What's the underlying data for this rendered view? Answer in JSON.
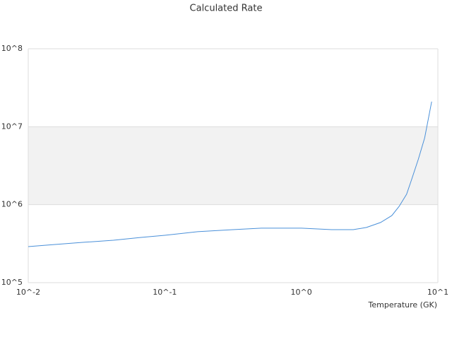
{
  "chart_data": {
    "type": "line",
    "title": "Calculated Rate",
    "x_label": "Temperature (GK)",
    "x": [
      0.01,
      0.016,
      0.026,
      0.042,
      0.067,
      0.1,
      0.174,
      0.316,
      0.51,
      1.0,
      1.67,
      2.4,
      3.0,
      3.8,
      4.6,
      5.2,
      5.9,
      6.4,
      7.2,
      8.0,
      9.0
    ],
    "series": [
      {
        "color": "#4a90d9",
        "values": [
          290000,
          309000,
          330000,
          350000,
          380000,
          405000,
          450000,
          478000,
          500000,
          500000,
          478000,
          478000,
          510000,
          590000,
          725000,
          950000,
          1360000,
          2060000,
          3850000,
          7200000,
          21000000
        ]
      }
    ],
    "xlim": [
      0.01,
      10
    ],
    "ylim": [
      100000,
      100000000
    ],
    "log_x": true,
    "log_y": true,
    "xticks": [
      {
        "value": 0.01,
        "label": "10^-2"
      },
      {
        "value": 0.1,
        "label": "10^-1"
      },
      {
        "value": 1,
        "label": "10^0"
      },
      {
        "value": 10,
        "label": "10^1"
      }
    ],
    "yticks": [
      {
        "value": 100000,
        "label": "10^5"
      },
      {
        "value": 1000000,
        "label": "10^6"
      },
      {
        "value": 10000000,
        "label": "10^7"
      },
      {
        "value": 100000000,
        "label": "10^8"
      }
    ],
    "grid": true,
    "band_color": "#f2f2f2"
  }
}
